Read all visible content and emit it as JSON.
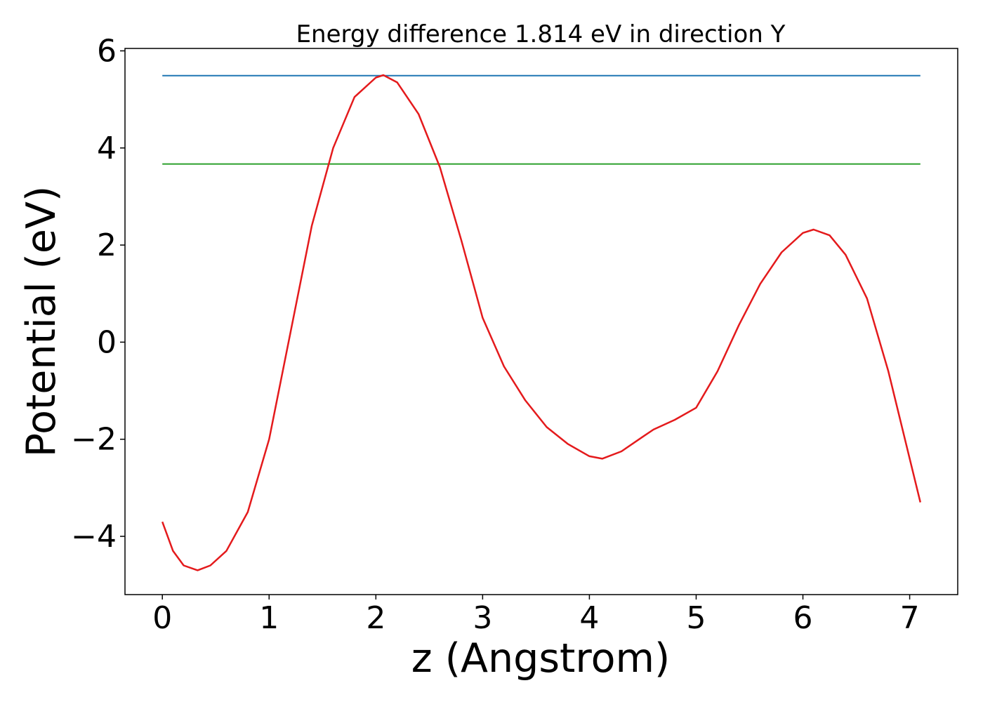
{
  "chart_data": {
    "type": "line",
    "title": "Energy difference 1.814 eV in direction Y",
    "xlabel": "z (Angstrom)",
    "ylabel": "Potential (eV)",
    "xlim": [
      -0.35,
      7.45
    ],
    "ylim": [
      -5.2,
      6.05
    ],
    "x_ticks": [
      0,
      1,
      2,
      3,
      4,
      5,
      6,
      7
    ],
    "x_tick_labels": [
      "0",
      "1",
      "2",
      "3",
      "4",
      "5",
      "6",
      "7"
    ],
    "y_ticks": [
      -4,
      -2,
      0,
      2,
      4,
      6
    ],
    "y_tick_labels": [
      "−4",
      "−2",
      "0",
      "2",
      "4",
      "6"
    ],
    "grid": false,
    "legend": "none",
    "series": [
      {
        "color": "#1f77b4",
        "x": [
          0,
          7.1
        ],
        "y": [
          5.49,
          5.49
        ]
      },
      {
        "color": "#2ca02c",
        "x": [
          0,
          7.1
        ],
        "y": [
          3.67,
          3.67
        ]
      },
      {
        "color": "#e41a1c",
        "x": [
          0,
          0.1,
          0.2,
          0.33,
          0.45,
          0.6,
          0.8,
          1.0,
          1.2,
          1.4,
          1.6,
          1.8,
          2.0,
          2.07,
          2.2,
          2.4,
          2.6,
          2.8,
          3.0,
          3.2,
          3.4,
          3.6,
          3.8,
          4.0,
          4.12,
          4.3,
          4.5,
          4.6,
          4.8,
          5.0,
          5.2,
          5.4,
          5.6,
          5.8,
          6.0,
          6.1,
          6.25,
          6.4,
          6.6,
          6.8,
          7.0,
          7.1
        ],
        "y": [
          -3.7,
          -4.3,
          -4.6,
          -4.7,
          -4.6,
          -4.3,
          -3.5,
          -2.0,
          0.2,
          2.4,
          4.0,
          5.05,
          5.45,
          5.5,
          5.35,
          4.7,
          3.6,
          2.1,
          0.5,
          -0.5,
          -1.2,
          -1.75,
          -2.1,
          -2.35,
          -2.4,
          -2.25,
          -1.95,
          -1.8,
          -1.6,
          -1.35,
          -0.6,
          0.35,
          1.2,
          1.85,
          2.25,
          2.32,
          2.2,
          1.8,
          0.9,
          -0.6,
          -2.4,
          -3.3
        ]
      }
    ]
  }
}
